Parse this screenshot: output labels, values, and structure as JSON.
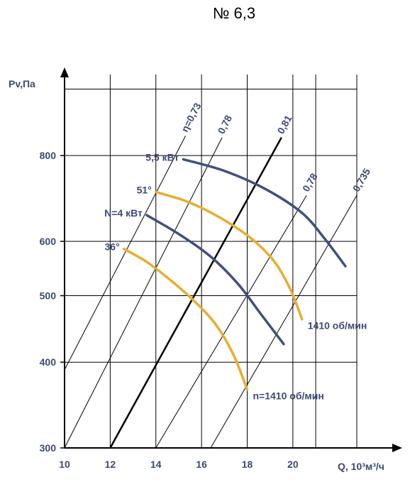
{
  "chart_data": {
    "type": "line",
    "title": "№ 6,3",
    "xlabel": "Q, 10³м³/ч",
    "ylabel": "Pv,Па",
    "xlim": [
      10,
      22.8
    ],
    "ylim": [
      300,
      1050
    ],
    "y_scale": "log",
    "grid": true,
    "x_ticks": [
      "10",
      "12",
      "14",
      "16",
      "18",
      "20"
    ],
    "y_ticks": [
      "300",
      "400",
      "500",
      "600",
      "800"
    ],
    "colors": {
      "blade_36": "#e8ad2e",
      "blade_51": "#e8ad2e",
      "power": "#3f4f80",
      "efficiency": "#000000",
      "grid": "#000000",
      "text": "#3d4a73"
    },
    "series": [
      {
        "id": "blade-36",
        "label": "36°",
        "color": "#e8ad2e",
        "points": [
          [
            12.6,
            585
          ],
          [
            13.6,
            560
          ],
          [
            14.6,
            528
          ],
          [
            15.6,
            494
          ],
          [
            16.6,
            455
          ],
          [
            17.4,
            410
          ],
          [
            18,
            365
          ]
        ]
      },
      {
        "id": "blade-51",
        "label": "51°",
        "color": "#e8ad2e",
        "points": [
          [
            14.0,
            708
          ],
          [
            15.4,
            685
          ],
          [
            16.8,
            650
          ],
          [
            18.2,
            605
          ],
          [
            19.2,
            560
          ],
          [
            19.9,
            510
          ],
          [
            20.4,
            462
          ]
        ]
      },
      {
        "id": "power-4",
        "label": "N=4 кВт",
        "color": "#3f4f80",
        "points": [
          [
            13.6,
            655
          ],
          [
            15.0,
            615
          ],
          [
            16.4,
            570
          ],
          [
            17.6,
            520
          ],
          [
            18.6,
            470
          ],
          [
            19.6,
            425
          ]
        ]
      },
      {
        "id": "power-5.5",
        "label": "5,5 кВт",
        "color": "#3f4f80",
        "points": [
          [
            15.2,
            790
          ],
          [
            17.0,
            760
          ],
          [
            18.8,
            715
          ],
          [
            20.4,
            660
          ],
          [
            21.4,
            605
          ],
          [
            22.3,
            552
          ]
        ]
      }
    ],
    "efficiency_lines": [
      {
        "label": "η=0,73",
        "points": [
          [
            10,
            390
          ],
          [
            15.3,
            855
          ]
        ],
        "bold": false
      },
      {
        "label": "0,78",
        "points": [
          [
            10,
            300
          ],
          [
            16.9,
            850
          ]
        ],
        "bold": false
      },
      {
        "label": "0,81",
        "points": [
          [
            12,
            300
          ],
          [
            19.5,
            850
          ]
        ],
        "bold": true
      },
      {
        "label": "0,78",
        "points": [
          [
            14,
            300
          ],
          [
            20.6,
            700
          ]
        ],
        "bold": false
      },
      {
        "label": "0,735",
        "points": [
          [
            16.4,
            300
          ],
          [
            22.8,
            700
          ]
        ],
        "bold": false
      }
    ],
    "annotations": [
      {
        "text": "1410 об/мин"
      },
      {
        "text": "n=1410 об/мин"
      }
    ]
  }
}
